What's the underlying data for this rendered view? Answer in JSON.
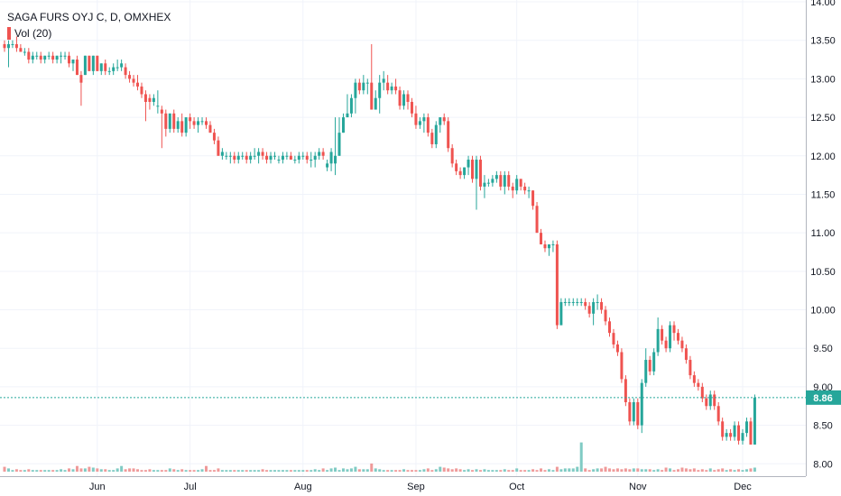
{
  "chart_data": {
    "type": "candlestick",
    "title": "SAGA FURS OYJ C, D, OMXHEX",
    "volume_label": "Vol (20)",
    "last_price": 8.86,
    "last_price_label": "8.86",
    "ylim": [
      7.98,
      14.0
    ],
    "y_ticks": [
      8.0,
      8.5,
      9.0,
      9.5,
      10.0,
      10.5,
      11.0,
      11.5,
      12.0,
      12.5,
      13.0,
      13.5,
      14.0
    ],
    "y_tick_labels": [
      "8.00",
      "8.50",
      "9.00",
      "9.50",
      "10.00",
      "10.50",
      "11.00",
      "11.50",
      "12.00",
      "12.50",
      "13.00",
      "13.50",
      "14.00"
    ],
    "x_month_labels": [
      {
        "label": "Jun",
        "index": 23
      },
      {
        "label": "Jul",
        "index": 46
      },
      {
        "label": "Aug",
        "index": 74
      },
      {
        "label": "Sep",
        "index": 102
      },
      {
        "label": "Oct",
        "index": 127
      },
      {
        "label": "Nov",
        "index": 157
      },
      {
        "label": "Dec",
        "index": 183
      }
    ],
    "grid": true,
    "colors": {
      "up": "#26a69a",
      "down": "#ef5350",
      "vol_up": "#80cbc4",
      "vol_down": "#ef9a9a",
      "last": "#26a69a"
    },
    "candles": [
      [
        13.45,
        13.5,
        13.35,
        13.4,
        0.3
      ],
      [
        13.4,
        13.5,
        13.15,
        13.45,
        0.2
      ],
      [
        13.45,
        13.5,
        13.4,
        13.45,
        0.1
      ],
      [
        13.45,
        13.55,
        13.35,
        13.4,
        0.15
      ],
      [
        13.4,
        13.45,
        13.35,
        13.35,
        0.1
      ],
      [
        13.35,
        13.4,
        13.3,
        13.35,
        0.1
      ],
      [
        13.35,
        13.4,
        13.2,
        13.25,
        0.15
      ],
      [
        13.25,
        13.35,
        13.2,
        13.3,
        0.1
      ],
      [
        13.3,
        13.35,
        13.25,
        13.3,
        0.1
      ],
      [
        13.3,
        13.35,
        13.2,
        13.25,
        0.1
      ],
      [
        13.25,
        13.3,
        13.2,
        13.3,
        0.1
      ],
      [
        13.3,
        13.35,
        13.25,
        13.3,
        0.1
      ],
      [
        13.3,
        13.35,
        13.2,
        13.25,
        0.1
      ],
      [
        13.25,
        13.3,
        13.2,
        13.3,
        0.1
      ],
      [
        13.3,
        13.35,
        13.2,
        13.3,
        0.15
      ],
      [
        13.3,
        13.35,
        13.25,
        13.3,
        0.1
      ],
      [
        13.3,
        13.35,
        13.15,
        13.2,
        0.2
      ],
      [
        13.2,
        13.25,
        13.1,
        13.25,
        0.15
      ],
      [
        13.25,
        13.3,
        13.05,
        13.05,
        0.35
      ],
      [
        13.05,
        13.1,
        12.65,
        12.95,
        0.2
      ],
      [
        13.05,
        13.3,
        13.05,
        13.3,
        0.2
      ],
      [
        13.3,
        13.3,
        13.1,
        13.1,
        0.3
      ],
      [
        13.1,
        13.3,
        13.05,
        13.3,
        0.25
      ],
      [
        13.3,
        13.3,
        13.1,
        13.1,
        0.2
      ],
      [
        13.1,
        13.2,
        13.05,
        13.2,
        0.15
      ],
      [
        13.2,
        13.25,
        13.05,
        13.1,
        0.15
      ],
      [
        13.1,
        13.15,
        13.05,
        13.1,
        0.1
      ],
      [
        13.1,
        13.2,
        13.05,
        13.15,
        0.1
      ],
      [
        13.15,
        13.25,
        13.1,
        13.15,
        0.2
      ],
      [
        13.15,
        13.25,
        13.1,
        13.2,
        0.35
      ],
      [
        13.15,
        13.2,
        13.0,
        13.05,
        0.15
      ],
      [
        13.05,
        13.1,
        12.95,
        13.0,
        0.2
      ],
      [
        13.0,
        13.05,
        12.9,
        12.95,
        0.2
      ],
      [
        12.95,
        13.05,
        12.85,
        12.9,
        0.15
      ],
      [
        12.9,
        12.95,
        12.75,
        12.8,
        0.1
      ],
      [
        12.8,
        12.85,
        12.45,
        12.7,
        0.1
      ],
      [
        12.75,
        12.8,
        12.6,
        12.7,
        0.15
      ],
      [
        12.7,
        12.8,
        12.65,
        12.75,
        0.1
      ],
      [
        12.65,
        12.85,
        12.55,
        12.65,
        0.1
      ],
      [
        12.6,
        12.65,
        12.1,
        12.55,
        0.1
      ],
      [
        12.55,
        12.6,
        12.25,
        12.35,
        0.1
      ],
      [
        12.35,
        12.55,
        12.3,
        12.55,
        0.2
      ],
      [
        12.55,
        12.6,
        12.3,
        12.35,
        0.15
      ],
      [
        12.35,
        12.5,
        12.3,
        12.45,
        0.1
      ],
      [
        12.45,
        12.55,
        12.25,
        12.3,
        0.15
      ],
      [
        12.3,
        12.5,
        12.25,
        12.5,
        0.1
      ],
      [
        12.5,
        12.55,
        12.35,
        12.45,
        0.1
      ],
      [
        12.45,
        12.5,
        12.35,
        12.4,
        0.1
      ],
      [
        12.4,
        12.5,
        12.3,
        12.45,
        0.1
      ],
      [
        12.45,
        12.5,
        12.4,
        12.45,
        0.15
      ],
      [
        12.45,
        12.5,
        12.35,
        12.4,
        0.35
      ],
      [
        12.4,
        12.45,
        12.3,
        12.3,
        0.1
      ],
      [
        12.3,
        12.35,
        12.15,
        12.2,
        0.1
      ],
      [
        12.2,
        12.25,
        12.0,
        12.0,
        0.2
      ],
      [
        12.0,
        12.1,
        11.95,
        12.05,
        0.1
      ],
      [
        12.0,
        12.05,
        11.95,
        12.0,
        0.1
      ],
      [
        12.0,
        12.05,
        11.9,
        12.0,
        0.1
      ],
      [
        12.0,
        12.05,
        11.9,
        11.95,
        0.1
      ],
      [
        11.95,
        12.05,
        11.9,
        12.0,
        0.1
      ],
      [
        12.0,
        12.05,
        11.95,
        12.0,
        0.1
      ],
      [
        12.0,
        12.05,
        11.9,
        11.95,
        0.1
      ],
      [
        11.95,
        12.05,
        11.9,
        12.0,
        0.1
      ],
      [
        12.0,
        12.1,
        11.95,
        12.0,
        0.1
      ],
      [
        12.0,
        12.1,
        11.9,
        12.05,
        0.1
      ],
      [
        12.05,
        12.1,
        11.95,
        12.0,
        0.15
      ],
      [
        12.0,
        12.05,
        11.9,
        11.95,
        0.1
      ],
      [
        11.95,
        12.05,
        11.9,
        12.0,
        0.1
      ],
      [
        12.0,
        12.05,
        11.95,
        12.0,
        0.1
      ],
      [
        11.95,
        12.0,
        11.9,
        11.95,
        0.1
      ],
      [
        11.95,
        12.05,
        11.9,
        12.0,
        0.1
      ],
      [
        12.0,
        12.05,
        11.95,
        12.0,
        0.1
      ],
      [
        12.0,
        12.05,
        11.95,
        11.95,
        0.1
      ],
      [
        11.95,
        12.0,
        11.9,
        11.95,
        0.1
      ],
      [
        11.95,
        12.05,
        11.9,
        12.0,
        0.1
      ],
      [
        12.0,
        12.05,
        11.95,
        12.0,
        0.1
      ],
      [
        12.0,
        12.05,
        11.9,
        11.95,
        0.1
      ],
      [
        11.95,
        12.05,
        11.85,
        11.95,
        0.1
      ],
      [
        11.95,
        12.05,
        11.85,
        12.0,
        0.15
      ],
      [
        12.0,
        12.1,
        11.95,
        12.05,
        0.1
      ],
      [
        12.05,
        12.1,
        11.95,
        12.0,
        0.2
      ],
      [
        11.85,
        11.95,
        11.8,
        11.9,
        0.1
      ],
      [
        11.9,
        12.1,
        11.8,
        12.05,
        0.2
      ],
      [
        11.9,
        12.5,
        11.75,
        12.0,
        0.25
      ],
      [
        12.0,
        12.5,
        12.0,
        12.3,
        0.1
      ],
      [
        12.3,
        12.55,
        12.3,
        12.5,
        0.2
      ],
      [
        12.5,
        12.8,
        12.5,
        12.55,
        0.15
      ],
      [
        12.55,
        12.8,
        12.5,
        12.75,
        0.2
      ],
      [
        12.75,
        13.0,
        12.55,
        12.95,
        0.3
      ],
      [
        12.95,
        13.0,
        12.8,
        12.85,
        0.15
      ],
      [
        12.85,
        13.05,
        12.8,
        12.95,
        0.15
      ],
      [
        12.95,
        13.0,
        12.8,
        12.95,
        0.15
      ],
      [
        12.95,
        13.45,
        12.6,
        12.6,
        0.5
      ],
      [
        12.6,
        12.85,
        12.6,
        12.75,
        0.2
      ],
      [
        12.75,
        13.05,
        12.55,
        12.95,
        0.15
      ],
      [
        12.95,
        13.1,
        12.85,
        13.0,
        0.1
      ],
      [
        12.95,
        13.05,
        12.8,
        12.85,
        0.1
      ],
      [
        12.85,
        12.95,
        12.8,
        12.9,
        0.1
      ],
      [
        12.9,
        13.0,
        12.8,
        12.85,
        0.1
      ],
      [
        12.85,
        12.9,
        12.6,
        12.65,
        0.1
      ],
      [
        12.65,
        12.85,
        12.6,
        12.8,
        0.15
      ],
      [
        12.8,
        12.85,
        12.6,
        12.7,
        0.1
      ],
      [
        12.7,
        12.75,
        12.5,
        12.55,
        0.1
      ],
      [
        12.55,
        12.65,
        12.35,
        12.4,
        0.1
      ],
      [
        12.4,
        12.5,
        12.35,
        12.45,
        0.1
      ],
      [
        12.45,
        12.55,
        12.3,
        12.5,
        0.15
      ],
      [
        12.5,
        12.55,
        12.25,
        12.3,
        0.2
      ],
      [
        12.3,
        12.35,
        12.1,
        12.15,
        0.1
      ],
      [
        12.15,
        12.45,
        12.1,
        12.4,
        0.15
      ],
      [
        12.4,
        12.5,
        12.3,
        12.5,
        0.3
      ],
      [
        12.5,
        12.55,
        12.4,
        12.45,
        0.25
      ],
      [
        12.45,
        12.5,
        12.05,
        12.1,
        0.2
      ],
      [
        12.1,
        12.15,
        11.85,
        11.9,
        0.15
      ],
      [
        11.9,
        11.95,
        11.75,
        11.8,
        0.2
      ],
      [
        11.8,
        11.85,
        11.7,
        11.75,
        0.15
      ],
      [
        11.75,
        11.85,
        11.7,
        11.85,
        0.1
      ],
      [
        11.85,
        12.0,
        11.75,
        11.95,
        0.15
      ],
      [
        11.95,
        12.0,
        11.65,
        11.7,
        0.1
      ],
      [
        11.7,
        12.0,
        11.3,
        11.95,
        0.15
      ],
      [
        11.95,
        12.0,
        11.55,
        11.6,
        0.1
      ],
      [
        11.6,
        11.75,
        11.45,
        11.65,
        0.15
      ],
      [
        11.65,
        11.7,
        11.6,
        11.65,
        0.1
      ],
      [
        11.65,
        11.75,
        11.6,
        11.7,
        0.1
      ],
      [
        11.7,
        11.8,
        11.65,
        11.75,
        0.1
      ],
      [
        11.75,
        11.8,
        11.55,
        11.6,
        0.1
      ],
      [
        11.6,
        11.8,
        11.5,
        11.75,
        0.15
      ],
      [
        11.75,
        11.8,
        11.55,
        11.6,
        0.1
      ],
      [
        11.6,
        11.65,
        11.45,
        11.55,
        0.1
      ],
      [
        11.55,
        11.75,
        11.5,
        11.7,
        0.2
      ],
      [
        11.7,
        11.7,
        11.55,
        11.6,
        0.1
      ],
      [
        11.6,
        11.65,
        11.5,
        11.55,
        0.1
      ],
      [
        11.55,
        11.6,
        11.45,
        11.55,
        0.1
      ],
      [
        11.55,
        11.55,
        11.3,
        11.35,
        0.15
      ],
      [
        11.35,
        11.4,
        11.0,
        11.0,
        0.1
      ],
      [
        11.0,
        11.05,
        10.85,
        10.85,
        0.2
      ],
      [
        10.85,
        10.9,
        10.75,
        10.8,
        0.1
      ],
      [
        10.8,
        10.85,
        10.7,
        10.85,
        0.15
      ],
      [
        10.85,
        10.9,
        10.75,
        10.85,
        0.1
      ],
      [
        10.85,
        10.9,
        9.75,
        9.8,
        0.3
      ],
      [
        9.8,
        10.15,
        9.8,
        10.1,
        0.15
      ],
      [
        10.1,
        10.15,
        10.05,
        10.1,
        0.2
      ],
      [
        10.1,
        10.15,
        10.05,
        10.1,
        0.2
      ],
      [
        10.1,
        10.15,
        10.05,
        10.1,
        0.2
      ],
      [
        10.1,
        10.15,
        10.05,
        10.1,
        0.3
      ],
      [
        10.1,
        10.15,
        10.05,
        10.1,
        1.8
      ],
      [
        10.1,
        10.15,
        10.0,
        10.05,
        0.2
      ],
      [
        10.05,
        10.1,
        9.9,
        9.95,
        0.1
      ],
      [
        9.95,
        10.15,
        9.8,
        10.1,
        0.15
      ],
      [
        10.1,
        10.2,
        10.0,
        10.1,
        0.2
      ],
      [
        10.1,
        10.15,
        9.95,
        10.0,
        0.2
      ],
      [
        10.0,
        10.05,
        9.8,
        9.85,
        0.3
      ],
      [
        9.85,
        9.9,
        9.65,
        9.7,
        0.2
      ],
      [
        9.7,
        9.75,
        9.5,
        9.55,
        0.15
      ],
      [
        9.55,
        9.6,
        9.4,
        9.45,
        0.2
      ],
      [
        9.45,
        9.5,
        9.05,
        9.1,
        0.15
      ],
      [
        9.1,
        9.15,
        8.75,
        8.8,
        0.2
      ],
      [
        8.8,
        8.85,
        8.5,
        8.55,
        0.15
      ],
      [
        8.55,
        8.85,
        8.5,
        8.8,
        0.2
      ],
      [
        8.8,
        8.85,
        8.45,
        8.5,
        0.2
      ],
      [
        8.5,
        9.1,
        8.4,
        9.05,
        0.15
      ],
      [
        9.05,
        9.5,
        9.0,
        9.35,
        0.15
      ],
      [
        9.35,
        9.4,
        9.15,
        9.2,
        0.15
      ],
      [
        9.2,
        9.5,
        9.15,
        9.45,
        0.1
      ],
      [
        9.45,
        9.9,
        9.4,
        9.75,
        0.15
      ],
      [
        9.75,
        9.8,
        9.55,
        9.6,
        0.1
      ],
      [
        9.6,
        9.65,
        9.45,
        9.5,
        0.25
      ],
      [
        9.5,
        9.85,
        9.45,
        9.8,
        0.2
      ],
      [
        9.8,
        9.85,
        9.6,
        9.7,
        0.1
      ],
      [
        9.7,
        9.75,
        9.55,
        9.6,
        0.15
      ],
      [
        9.6,
        9.65,
        9.45,
        9.5,
        0.25
      ],
      [
        9.5,
        9.55,
        9.3,
        9.35,
        0.2
      ],
      [
        9.35,
        9.4,
        9.1,
        9.15,
        0.15
      ],
      [
        9.15,
        9.2,
        9.0,
        9.05,
        0.2
      ],
      [
        9.05,
        9.1,
        8.95,
        9.0,
        0.1
      ],
      [
        9.0,
        9.05,
        8.8,
        8.85,
        0.15
      ],
      [
        8.85,
        8.9,
        8.7,
        8.75,
        0.1
      ],
      [
        8.75,
        8.95,
        8.7,
        8.9,
        0.2
      ],
      [
        8.9,
        8.95,
        8.7,
        8.75,
        0.1
      ],
      [
        8.75,
        8.8,
        8.5,
        8.55,
        0.15
      ],
      [
        8.55,
        8.6,
        8.3,
        8.35,
        0.2
      ],
      [
        8.35,
        8.45,
        8.3,
        8.4,
        0.1
      ],
      [
        8.4,
        8.45,
        8.3,
        8.35,
        0.15
      ],
      [
        8.35,
        8.55,
        8.3,
        8.5,
        0.1
      ],
      [
        8.5,
        8.55,
        8.25,
        8.3,
        0.15
      ],
      [
        8.3,
        8.45,
        8.25,
        8.4,
        0.1
      ],
      [
        8.4,
        8.6,
        8.35,
        8.55,
        0.15
      ],
      [
        8.55,
        8.6,
        8.25,
        8.25,
        0.2
      ],
      [
        8.25,
        8.9,
        8.25,
        8.86,
        0.25
      ]
    ]
  }
}
